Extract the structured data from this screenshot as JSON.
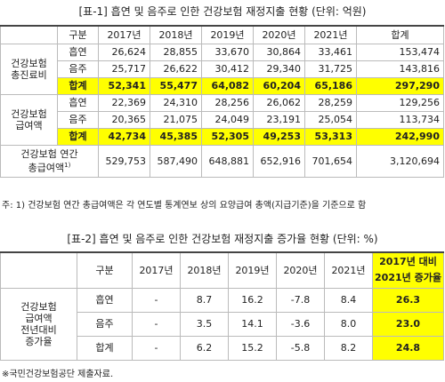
{
  "table1": {
    "title": "[표-1] 흡연 및 음주로 인한 건강보험 재정지출 현황 (단위: 억원)",
    "header": [
      "구분",
      "2017년",
      "2018년",
      "2019년",
      "2020년",
      "2021년",
      "합계"
    ],
    "groups": [
      {
        "label": [
          "건강보험",
          "총진료비"
        ],
        "rows": [
          {
            "label": "흡연",
            "cells": [
              "26,624",
              "28,855",
              "33,670",
              "30,864",
              "33,461",
              "153,474"
            ]
          },
          {
            "label": "음주",
            "cells": [
              "25,717",
              "26,622",
              "30,412",
              "29,340",
              "31,725",
              "143,816"
            ]
          },
          {
            "label": "합계",
            "cells": [
              "52,341",
              "55,477",
              "64,082",
              "60,204",
              "65,186",
              "297,290"
            ]
          }
        ]
      },
      {
        "label": [
          "건강보험",
          "급여액"
        ],
        "rows": [
          {
            "label": "흡연",
            "cells": [
              "22,369",
              "24,310",
              "28,256",
              "26,062",
              "28,259",
              "129,256"
            ]
          },
          {
            "label": "음주",
            "cells": [
              "20,365",
              "21,075",
              "24,049",
              "23,191",
              "25,054",
              "113,734"
            ]
          },
          {
            "label": "합계",
            "cells": [
              "42,734",
              "45,385",
              "52,305",
              "49,253",
              "53,313",
              "242,990"
            ]
          }
        ]
      }
    ],
    "total_row": {
      "label": [
        "건강보험 연간",
        "총급여액"
      ],
      "sup": "1)",
      "cells": [
        "529,753",
        "587,490",
        "648,881",
        "652,916",
        "701,654",
        "3,120,694"
      ]
    },
    "note": "주: 1) 건강보험 연간 총급여액은 각 연도별 통계연보 상의 요양급여 총액(지급기준)을 기준으로 함"
  },
  "table2": {
    "title": "[표-2] 흡연 및 음주로 인한 건강보험 재정지출 증가율 현황 (단위: %)",
    "header": [
      "구분",
      "2017년",
      "2018년",
      "2019년",
      "2020년",
      "2021년"
    ],
    "last_header": [
      "2017년 대비",
      "2021년 증가율"
    ],
    "group_label": [
      "건강보험",
      "급여액",
      "전년대비",
      "증가율"
    ],
    "rows": [
      {
        "label": "흡연",
        "cells": [
          "-",
          "8.7",
          "16.2",
          "-7.8",
          "8.4",
          "26.3"
        ]
      },
      {
        "label": "음주",
        "cells": [
          "-",
          "3.5",
          "14.1",
          "-3.6",
          "8.0",
          "23.0"
        ]
      },
      {
        "label": "합계",
        "cells": [
          "-",
          "6.2",
          "15.2",
          "-5.8",
          "8.2",
          "24.8"
        ]
      }
    ],
    "source": "※국민건강보험공단 제출자료."
  }
}
